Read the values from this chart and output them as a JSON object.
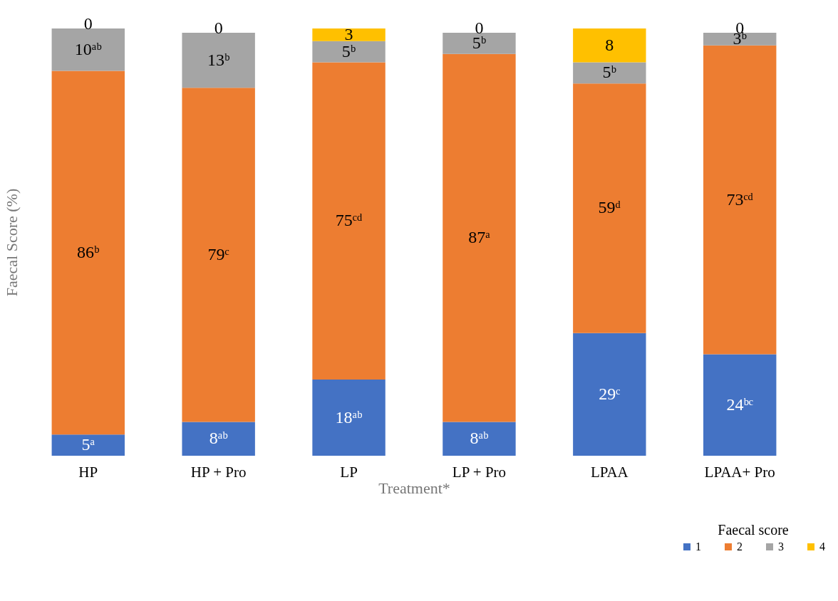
{
  "chart_data": {
    "type": "bar",
    "stacked": true,
    "xlabel": "Treatment*",
    "ylabel": "Faecal Score (%)",
    "legend_title": "Faecal score",
    "legend": "bottom right",
    "grid": false,
    "tick_labels": "x",
    "categories": [
      "HP",
      "HP + Pro",
      "LP",
      "LP + Pro",
      "LPAA",
      "LPAA+ Pro"
    ],
    "series": [
      {
        "name": "1",
        "color": "#4472c4",
        "values": [
          5,
          8,
          18,
          8,
          29,
          24
        ],
        "value_labels": [
          "5ᵃ",
          "8ᵃᵇ",
          "18ᵃᵇ",
          "8ᵃᵇ",
          "29ᶜ",
          "24ᵇᶜ"
        ]
      },
      {
        "name": "2",
        "color": "#ed7d31",
        "values": [
          86,
          79,
          75,
          87,
          59,
          73
        ],
        "value_labels": [
          "86ᵇ",
          "79ᶜ",
          "75ᶜᵈ",
          "87ᵃ",
          "59ᵈ",
          "73ᶜᵈ"
        ]
      },
      {
        "name": "3",
        "color": "#a5a5a5",
        "values": [
          10,
          13,
          5,
          5,
          5,
          3
        ],
        "value_labels": [
          "10ᵃᵇ",
          "13ᵇ",
          "5ᵇ",
          "5ᵇ",
          "5ᵇ",
          "3ᵇ"
        ]
      },
      {
        "name": "4",
        "color": "#ffc000",
        "values": [
          0,
          0,
          3,
          0,
          8,
          0
        ],
        "value_labels": [
          "0",
          "0",
          "3",
          "0",
          "8",
          "0"
        ]
      }
    ]
  }
}
